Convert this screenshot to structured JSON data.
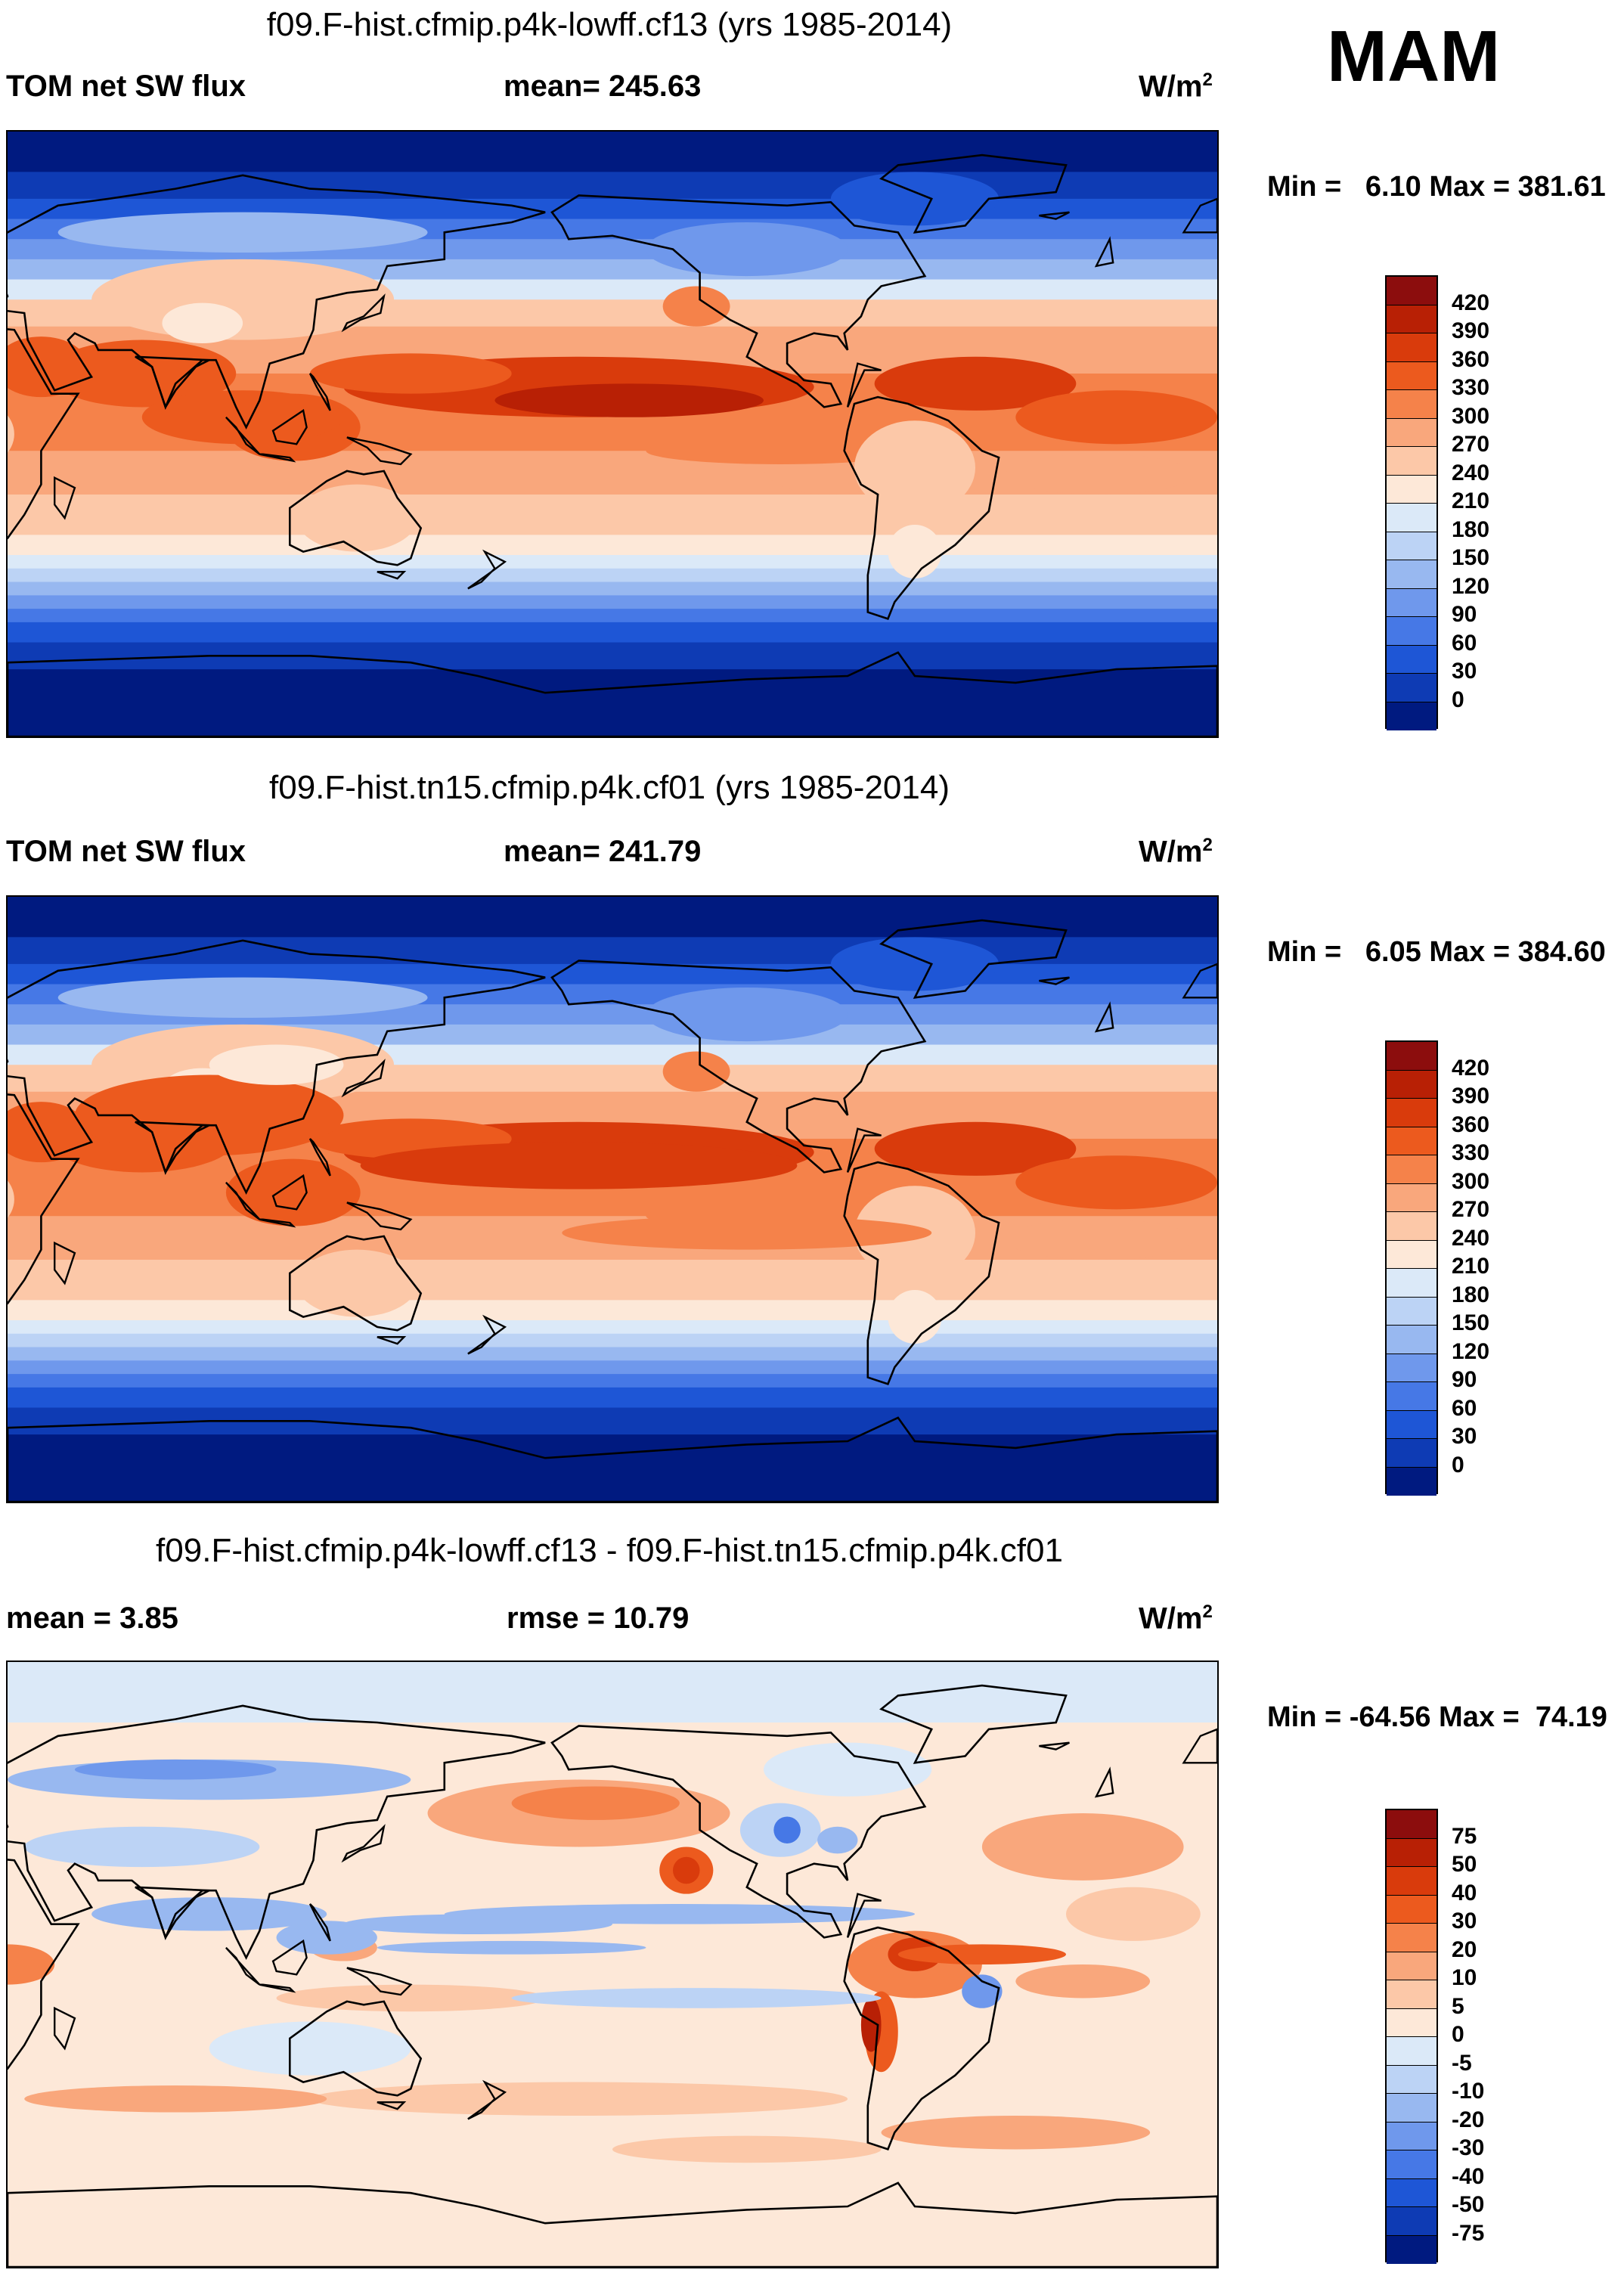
{
  "season": "MAM",
  "panels": [
    {
      "title": "f09.F-hist.cfmip.p4k-lowff.cf13 (yrs 1985-2014)",
      "left_label": "TOM net SW flux",
      "center_label": "mean= 245.63",
      "units": "W/m",
      "units_sup": "2",
      "minmax": "Min =   6.10 Max = 381.61",
      "variant": "abs1"
    },
    {
      "title": "f09.F-hist.tn15.cfmip.p4k.cf01 (yrs 1985-2014)",
      "left_label": "TOM net SW flux",
      "center_label": "mean= 241.79",
      "units": "W/m",
      "units_sup": "2",
      "minmax": "Min =   6.05 Max = 384.60",
      "variant": "abs2"
    },
    {
      "title": "f09.F-hist.cfmip.p4k-lowff.cf13 - f09.F-hist.tn15.cfmip.p4k.cf01",
      "left_label": "mean =   3.85",
      "center_label": "rmse =  10.79",
      "units": "W/m",
      "units_sup": "2",
      "minmax": "Min = -64.56 Max =  74.19",
      "variant": "diff"
    }
  ],
  "colorbars": {
    "abs": {
      "labels": [
        "420",
        "390",
        "360",
        "330",
        "300",
        "270",
        "240",
        "210",
        "180",
        "150",
        "120",
        "90",
        "60",
        "30",
        "0"
      ],
      "colors": [
        "#8c0d0d",
        "#b82005",
        "#d93b0c",
        "#ec5a1e",
        "#f5824a",
        "#f9a77c",
        "#fcc8a8",
        "#fde8d8",
        "#dbe9f8",
        "#bcd3f5",
        "#98b8f0",
        "#6f98ec",
        "#4678e6",
        "#1e56d6",
        "#0e3bb4",
        "#001a80"
      ]
    },
    "diff": {
      "labels": [
        "75",
        "50",
        "40",
        "30",
        "20",
        "10",
        "5",
        "0",
        "-5",
        "-10",
        "-20",
        "-30",
        "-40",
        "-50",
        "-75"
      ],
      "colors": [
        "#8c0d0d",
        "#b82005",
        "#d93b0c",
        "#ec5a1e",
        "#f5824a",
        "#f9a77c",
        "#fcc8a8",
        "#fde8d8",
        "#dbe9f8",
        "#bcd3f5",
        "#98b8f0",
        "#6f98ec",
        "#4678e6",
        "#1e56d6",
        "#0e3bb4",
        "#001a80"
      ]
    }
  }
}
